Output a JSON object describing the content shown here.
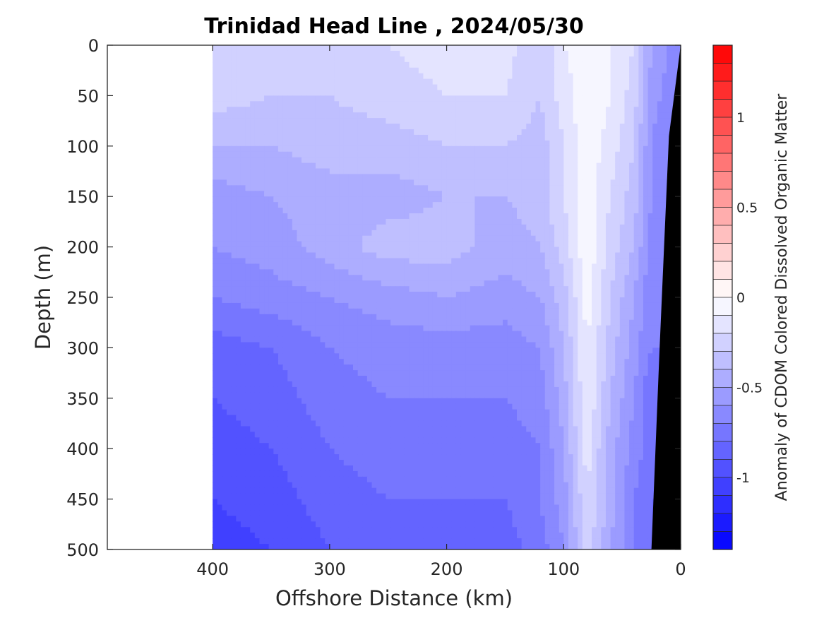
{
  "chart_data": {
    "type": "heatmap",
    "title": "Trinidad Head Line , 2024/05/30",
    "xlabel": "Offshore Distance (km)",
    "ylabel": "Depth (m)",
    "colorbar_label": "Anomaly of CDOM Colored Dissolved Organic Matter",
    "xlim": [
      490,
      0
    ],
    "ylim": [
      500,
      0
    ],
    "x_ticks": [
      400,
      300,
      200,
      100,
      0
    ],
    "x_tick_labels": [
      "400",
      "300",
      "200",
      "100",
      "0"
    ],
    "y_ticks": [
      0,
      50,
      100,
      150,
      200,
      250,
      300,
      350,
      400,
      450,
      500
    ],
    "y_tick_labels": [
      "0",
      "50",
      "100",
      "150",
      "200",
      "250",
      "300",
      "350",
      "400",
      "450",
      "500"
    ],
    "clim": [
      -1.4,
      1.4
    ],
    "color_levels": 28,
    "colorbar_ticks": [
      1,
      0.5,
      0,
      -0.5,
      -1
    ],
    "colorbar_tick_labels": [
      "1",
      "0.5",
      "0",
      "-0.5",
      "-1"
    ],
    "colormap": {
      "negative": "#0000ff",
      "zero": "#ffffff",
      "positive": "#ff0000"
    },
    "data_x_range": [
      400,
      0
    ],
    "bottom_color": "#000000",
    "bottom_profile": [
      [
        0,
        0
      ],
      [
        10,
        90
      ],
      [
        18,
        300
      ],
      [
        25,
        500
      ]
    ],
    "depth_levels": [
      0,
      50,
      100,
      150,
      200,
      250,
      300,
      350,
      400,
      450,
      500
    ],
    "distance_grid": [
      400,
      350,
      300,
      250,
      200,
      150,
      120,
      100,
      80,
      60,
      40,
      25,
      10
    ],
    "anomaly": [
      [
        -0.25,
        -0.3,
        -0.3,
        -0.2,
        -0.15,
        -0.15,
        -0.3,
        -0.1,
        -0.05,
        -0.1,
        -0.2,
        -0.5,
        -0.6
      ],
      [
        -0.25,
        -0.3,
        -0.3,
        -0.25,
        -0.2,
        -0.2,
        -0.3,
        -0.15,
        -0.02,
        -0.1,
        -0.25,
        -0.55,
        -0.65
      ],
      [
        -0.4,
        -0.4,
        -0.35,
        -0.35,
        -0.3,
        -0.3,
        -0.35,
        -0.2,
        -0.02,
        -0.15,
        -0.3,
        -0.6,
        -0.7
      ],
      [
        -0.55,
        -0.5,
        -0.45,
        -0.45,
        -0.4,
        -0.4,
        -0.35,
        -0.2,
        -0.05,
        -0.2,
        -0.35,
        -0.6,
        -0.7
      ],
      [
        -0.6,
        -0.55,
        -0.45,
        -0.35,
        -0.35,
        -0.45,
        -0.4,
        -0.25,
        -0.02,
        -0.25,
        -0.4,
        -0.65,
        -0.7
      ],
      [
        -0.7,
        -0.65,
        -0.6,
        -0.55,
        -0.5,
        -0.55,
        -0.5,
        -0.35,
        -0.05,
        -0.3,
        -0.5,
        -0.7,
        -0.7
      ],
      [
        -0.85,
        -0.8,
        -0.7,
        -0.65,
        -0.65,
        -0.65,
        -0.6,
        -0.4,
        -0.1,
        -0.35,
        -0.55,
        -0.7,
        -0.7
      ],
      [
        -0.9,
        -0.85,
        -0.75,
        -0.7,
        -0.7,
        -0.7,
        -0.65,
        -0.45,
        -0.1,
        -0.4,
        -0.6,
        -0.8,
        -0.75
      ],
      [
        -0.95,
        -0.9,
        -0.8,
        -0.75,
        -0.75,
        -0.75,
        -0.7,
        -0.5,
        -0.15,
        -0.45,
        -0.65,
        -0.75,
        -0.75
      ],
      [
        -1.0,
        -0.95,
        -0.85,
        -0.8,
        -0.8,
        -0.8,
        -0.7,
        -0.55,
        -0.2,
        -0.45,
        -0.7,
        -0.8,
        -0.8
      ],
      [
        -1.05,
        -1.0,
        -0.9,
        -0.85,
        -0.85,
        -0.85,
        -0.75,
        -0.6,
        -0.25,
        -0.5,
        -0.7,
        -0.8,
        -0.8
      ]
    ]
  }
}
